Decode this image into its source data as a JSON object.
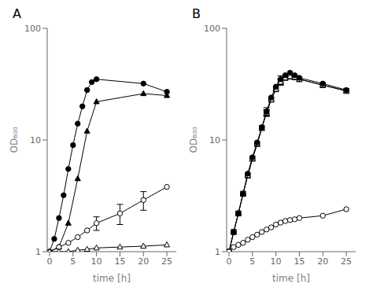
{
  "chart_data": [
    {
      "type": "line",
      "title": "A",
      "xlabel": "time [h]",
      "ylabel": "OD₆₀₀",
      "log": "y",
      "grid": false,
      "xlim": [
        -0.5,
        27
      ],
      "ylim": [
        1.0,
        100
      ],
      "xticks": [
        0,
        5,
        10,
        15,
        20,
        25
      ],
      "yticks": [
        1,
        10,
        100
      ],
      "series": [
        {
          "x": [
            0,
            1,
            2,
            3,
            4,
            5,
            6,
            7,
            8,
            9,
            10,
            20,
            25
          ],
          "values": [
            1.0,
            1.3,
            2.0,
            3.2,
            5.5,
            9.0,
            14.0,
            20.0,
            28.0,
            33.0,
            35.0,
            32.0,
            27.0
          ],
          "marker": "circle",
          "color": "#000000"
        },
        {
          "x": [
            0,
            2,
            4,
            6,
            8,
            10,
            20,
            25
          ],
          "values": [
            1.0,
            1.1,
            1.8,
            4.5,
            12.0,
            22.0,
            26.0,
            25.0
          ],
          "marker": "triangle",
          "color": "#000000"
        },
        {
          "x": [
            0,
            2,
            4,
            6,
            8,
            10,
            15,
            20,
            25
          ],
          "values": [
            1.0,
            1.1,
            1.2,
            1.35,
            1.55,
            1.8,
            2.2,
            2.9,
            3.8
          ],
          "yerr": [
            null,
            null,
            null,
            null,
            null,
            0.25,
            0.45,
            0.55,
            null
          ],
          "marker": "open_circle",
          "color": "#000000"
        },
        {
          "x": [
            0,
            2,
            4,
            6,
            8,
            10,
            15,
            20,
            25
          ],
          "values": [
            1.0,
            1.0,
            1.0,
            1.03,
            1.05,
            1.08,
            1.1,
            1.12,
            1.15
          ],
          "marker": "open_triangle",
          "color": "#000000"
        }
      ]
    },
    {
      "type": "line",
      "title": "B",
      "xlabel": "time [h]",
      "ylabel": "OD₆₀₀",
      "log": "y",
      "grid": false,
      "xlim": [
        -0.5,
        27
      ],
      "ylim": [
        1.0,
        100
      ],
      "xticks": [
        0,
        5,
        10,
        15,
        20,
        25
      ],
      "yticks": [
        1,
        10,
        100
      ],
      "series": [
        {
          "x": [
            0,
            1,
            2,
            3,
            4,
            5,
            6,
            7,
            8,
            9,
            10,
            11,
            12,
            13,
            14,
            15,
            20,
            25
          ],
          "values": [
            1.0,
            1.5,
            2.2,
            3.3,
            4.8,
            6.8,
            9.2,
            12.8,
            17.5,
            23.0,
            28.5,
            33.0,
            36.0,
            37.0,
            36.5,
            35.0,
            31.0,
            27.5
          ],
          "yerr": [
            null,
            null,
            null,
            null,
            null,
            null,
            null,
            null,
            1.2,
            null,
            null,
            2.0,
            null,
            null,
            null,
            null,
            null,
            null
          ],
          "marker": "open_square",
          "color": "#000000"
        },
        {
          "x": [
            0,
            1,
            2,
            3,
            4,
            5,
            6,
            7,
            8,
            9,
            10,
            11,
            12,
            13,
            14,
            15,
            20,
            25
          ],
          "values": [
            1.0,
            1.5,
            2.2,
            3.3,
            4.8,
            6.8,
            9.2,
            12.8,
            17.5,
            23.0,
            28.5,
            33.0,
            36.0,
            37.0,
            36.5,
            35.0,
            31.0,
            27.5
          ],
          "yerr": [
            null,
            null,
            null,
            null,
            null,
            null,
            null,
            null,
            1.2,
            null,
            null,
            2.0,
            null,
            null,
            null,
            null,
            null,
            null
          ],
          "marker": "open_triangle",
          "color": "#000000"
        },
        {
          "x": [
            0,
            1,
            2,
            3,
            4,
            5,
            6,
            7,
            8,
            9,
            10,
            11,
            12,
            13,
            14,
            15,
            20,
            25
          ],
          "values": [
            1.0,
            1.5,
            2.2,
            3.3,
            5.0,
            7.0,
            9.5,
            13.0,
            18.0,
            24.0,
            30.0,
            35.0,
            38.0,
            40.0,
            38.0,
            36.0,
            32.0,
            28.0
          ],
          "yerr": [
            null,
            null,
            null,
            null,
            null,
            null,
            null,
            null,
            1.5,
            null,
            null,
            2.5,
            null,
            null,
            null,
            null,
            null,
            null
          ],
          "marker": "circle",
          "color": "#000000"
        },
        {
          "x": [
            0,
            1,
            2,
            3,
            4,
            5,
            6,
            7,
            8,
            9,
            10,
            11,
            12,
            13,
            14,
            15,
            20,
            25
          ],
          "values": [
            1.0,
            1.1,
            1.15,
            1.2,
            1.28,
            1.35,
            1.42,
            1.5,
            1.58,
            1.65,
            1.75,
            1.82,
            1.88,
            1.92,
            1.95,
            2.0,
            2.1,
            2.4
          ],
          "marker": "open_circle",
          "color": "#000000"
        }
      ]
    }
  ]
}
